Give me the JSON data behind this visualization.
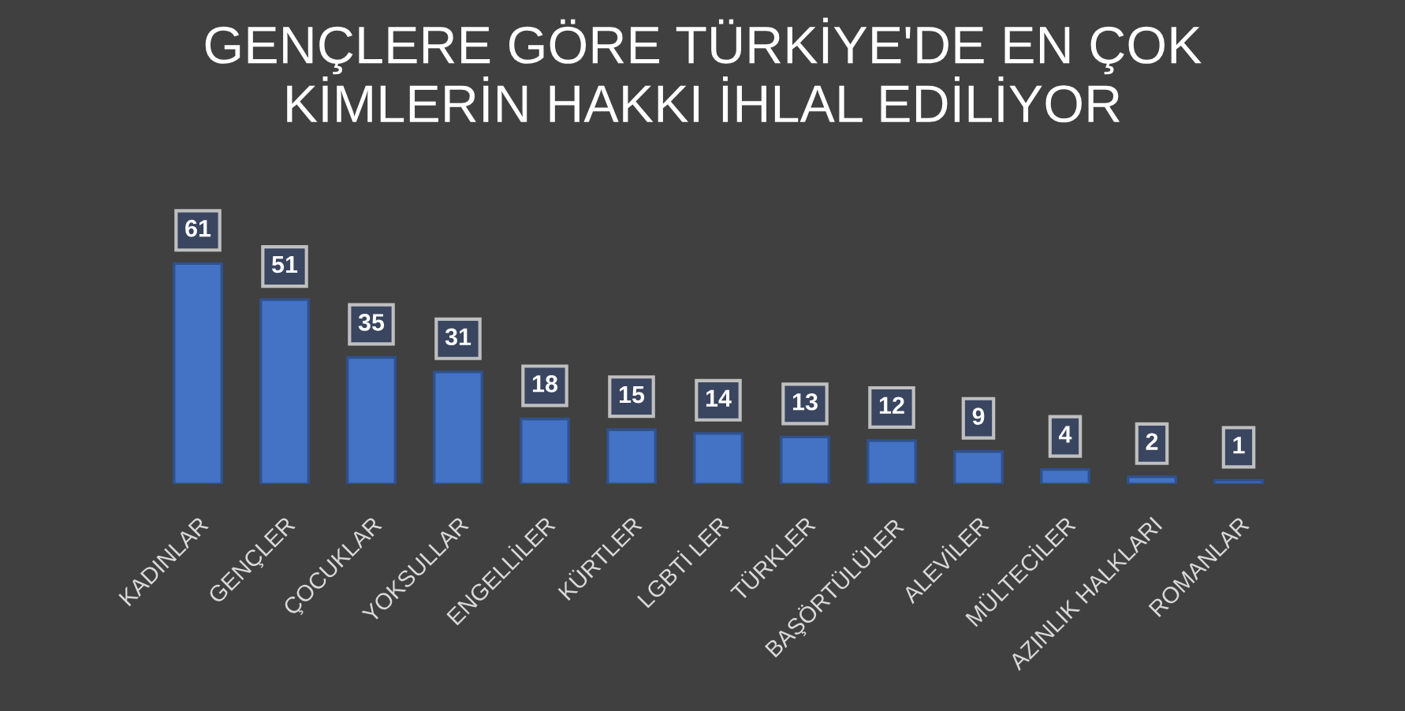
{
  "chart_data": {
    "type": "bar",
    "title": "GENÇLERE GÖRE TÜRKİYE'DE EN ÇOK\nKİMLERİN HAKKI İHLAL EDİLİYOR",
    "categories": [
      "KADINLAR",
      "GENÇLER",
      "ÇOCUKLAR",
      "YOKSULLAR",
      "ENGELLİLER",
      "KÜRTLER",
      "LGBTİ LER",
      "TÜRKLER",
      "BAŞÖRTÜLÜLER",
      "ALEVİLER",
      "MÜLTECİLER",
      "AZINLIK HALKLARI",
      "ROMANLAR"
    ],
    "values": [
      61,
      51,
      35,
      31,
      18,
      15,
      14,
      13,
      12,
      9,
      4,
      2,
      1
    ],
    "color": "#4472c4",
    "data_labels": true
  }
}
